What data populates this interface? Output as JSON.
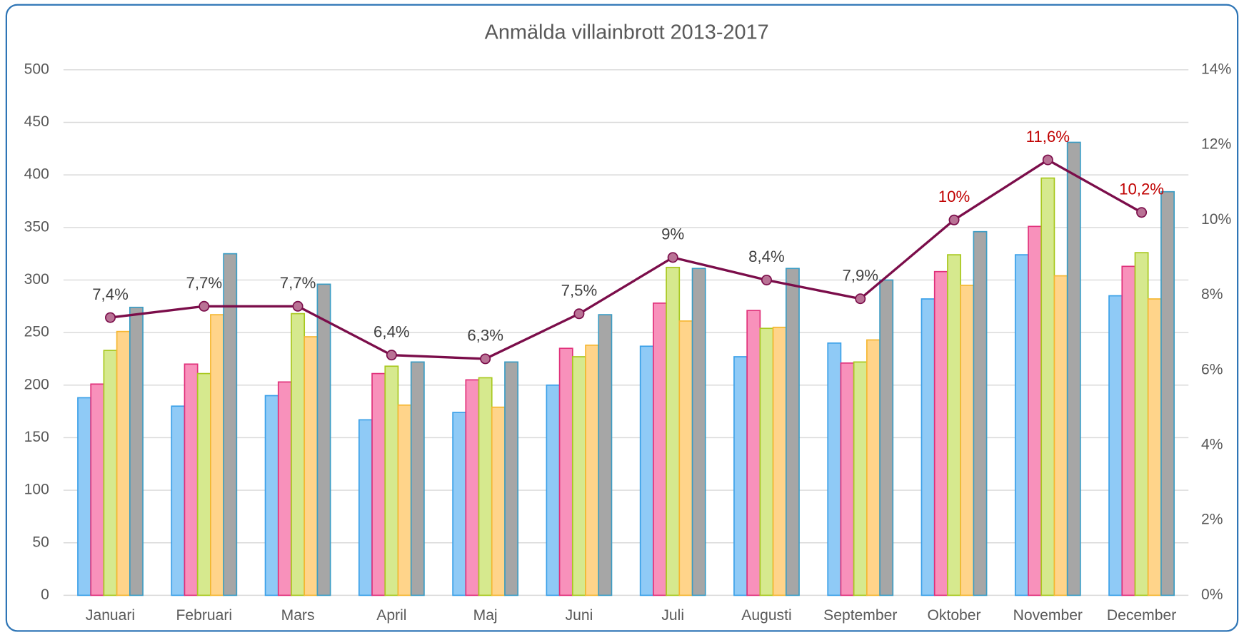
{
  "chart_data": {
    "type": "bar",
    "title": "Anmälda villainbrott 2013-2017",
    "categories": [
      "Januari",
      "Februari",
      "Mars",
      "April",
      "Maj",
      "Juni",
      "Juli",
      "Augusti",
      "September",
      "Oktober",
      "November",
      "December"
    ],
    "series": [
      {
        "color": "#8fcaf6",
        "edgecolor": "#3aa0e8",
        "values": [
          188,
          180,
          190,
          167,
          174,
          200,
          237,
          227,
          240,
          282,
          324,
          285
        ]
      },
      {
        "color": "#f891bb",
        "edgecolor": "#e0307a",
        "values": [
          201,
          220,
          203,
          211,
          205,
          235,
          278,
          271,
          221,
          308,
          351,
          313
        ]
      },
      {
        "color": "#d6e98e",
        "edgecolor": "#a8c81e",
        "values": [
          233,
          211,
          268,
          218,
          207,
          227,
          312,
          254,
          222,
          324,
          397,
          326
        ]
      },
      {
        "color": "#ffd48a",
        "edgecolor": "#f5b731",
        "values": [
          251,
          267,
          246,
          181,
          179,
          238,
          261,
          255,
          243,
          295,
          304,
          282
        ]
      },
      {
        "color": "#a6a6a6",
        "edgecolor": "#3a9cc4",
        "values": [
          274,
          325,
          296,
          222,
          222,
          267,
          311,
          311,
          300,
          346,
          431,
          384
        ]
      },
      {
        "type": "line",
        "axis": "y2",
        "color": "#7b0d4a",
        "marker_color": "#b97295",
        "values": [
          7.4,
          7.7,
          7.7,
          6.4,
          6.3,
          7.5,
          9,
          8.4,
          7.9,
          10,
          11.6,
          10.2
        ],
        "value_labels": [
          "7,4%",
          "7,7%",
          "7,7%",
          "6,4%",
          "6,3%",
          "7,5%",
          "9%",
          "8,4%",
          "7,9%",
          "10%",
          "11,6%",
          "10,2%"
        ],
        "value_label_colors": [
          "#404040",
          "#404040",
          "#404040",
          "#404040",
          "#404040",
          "#404040",
          "#404040",
          "#404040",
          "#404040",
          "#c00000",
          "#c00000",
          "#c00000"
        ]
      }
    ],
    "ylim": [
      0,
      500
    ],
    "yticks": [
      0,
      50,
      100,
      150,
      200,
      250,
      300,
      350,
      400,
      450,
      500
    ],
    "y2lim": [
      0,
      14
    ],
    "y2ticks": [
      {
        "value": 0,
        "label": "0%"
      },
      {
        "value": 2,
        "label": "2%"
      },
      {
        "value": 4,
        "label": "4%"
      },
      {
        "value": 6,
        "label": "6%"
      },
      {
        "value": 8,
        "label": "8%"
      },
      {
        "value": 10,
        "label": "10%"
      },
      {
        "value": 12,
        "label": "12%"
      },
      {
        "value": 14,
        "label": "14%"
      }
    ],
    "grid": true
  }
}
